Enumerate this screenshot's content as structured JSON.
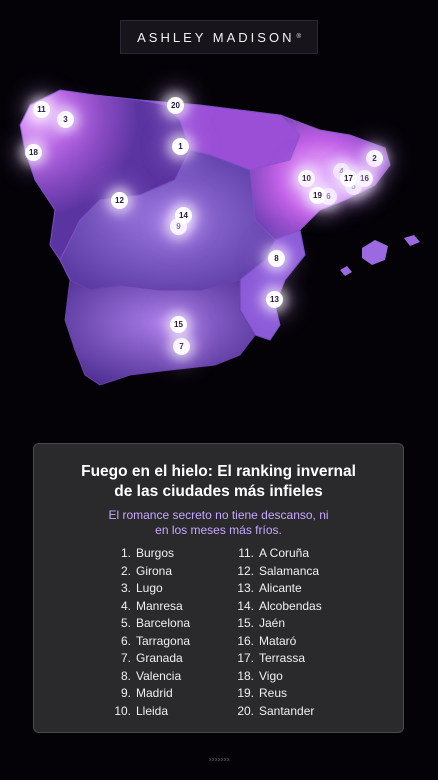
{
  "brand": {
    "name": "ASHLEY MADISON",
    "mark": "®"
  },
  "map": {
    "markers": [
      {
        "n": "1"
      },
      {
        "n": "2"
      },
      {
        "n": "3"
      },
      {
        "n": "4"
      },
      {
        "n": "5"
      },
      {
        "n": "6"
      },
      {
        "n": "7"
      },
      {
        "n": "8"
      },
      {
        "n": "9"
      },
      {
        "n": "10"
      },
      {
        "n": "11"
      },
      {
        "n": "12"
      },
      {
        "n": "13"
      },
      {
        "n": "14"
      },
      {
        "n": "15"
      },
      {
        "n": "16"
      },
      {
        "n": "17"
      },
      {
        "n": "18"
      },
      {
        "n": "19"
      },
      {
        "n": "20"
      }
    ]
  },
  "panel": {
    "title_line1": "Fuego en el hielo: El ranking invernal",
    "title_line2": "de las ciudades más infieles",
    "subtitle_line1": "El romance secreto no tiene descanso, ni",
    "subtitle_line2": "en los meses más fríos.",
    "ranking_left": [
      {
        "num": "1.",
        "city": "Burgos"
      },
      {
        "num": "2.",
        "city": "Girona"
      },
      {
        "num": "3.",
        "city": "Lugo"
      },
      {
        "num": "4.",
        "city": "Manresa"
      },
      {
        "num": "5.",
        "city": "Barcelona"
      },
      {
        "num": "6.",
        "city": "Tarragona"
      },
      {
        "num": "7.",
        "city": "Granada"
      },
      {
        "num": "8.",
        "city": "Valencia"
      },
      {
        "num": "9.",
        "city": "Madrid"
      },
      {
        "num": "10.",
        "city": "Lleida"
      }
    ],
    "ranking_right": [
      {
        "num": "11.",
        "city": "A Coruña"
      },
      {
        "num": "12.",
        "city": "Salamanca"
      },
      {
        "num": "13.",
        "city": "Alicante"
      },
      {
        "num": "14.",
        "city": "Alcobendas"
      },
      {
        "num": "15.",
        "city": "Jaén"
      },
      {
        "num": "16.",
        "city": "Mataró"
      },
      {
        "num": "17.",
        "city": "Terrassa"
      },
      {
        "num": "18.",
        "city": "Vigo"
      },
      {
        "num": "19.",
        "city": "Reus"
      },
      {
        "num": "20.",
        "city": "Santander"
      }
    ]
  },
  "footer": {
    "text": "xxxxxxx"
  },
  "colors": {
    "background": "#040207",
    "panel": "#2a2a2c",
    "subtitle": "#c7a7ff",
    "map_glow": "#d98cff",
    "map_base": "#6a3fae"
  }
}
